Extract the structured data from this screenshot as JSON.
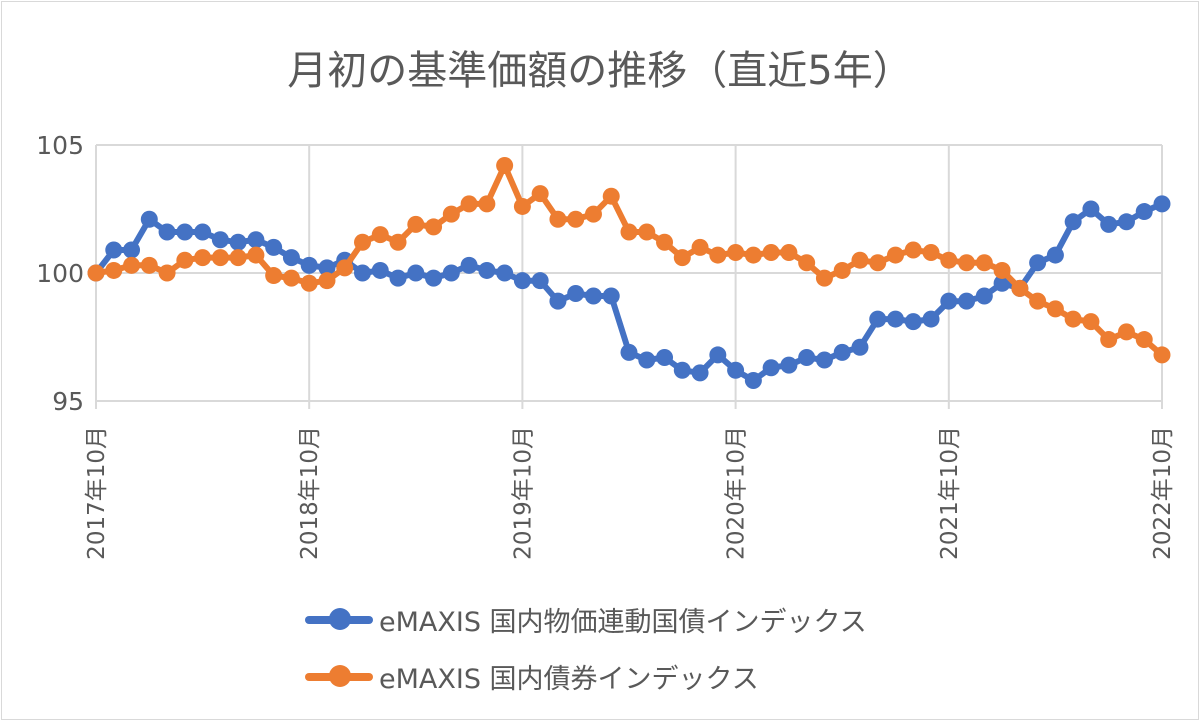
{
  "chart_data": {
    "type": "line",
    "title": "月初の基準価額の推移（直近5年）",
    "xlabel": "",
    "ylabel": "",
    "ylim": [
      95,
      105
    ],
    "yticks": [
      "95",
      "100",
      "105"
    ],
    "xticks": [
      "2017年10月",
      "2018年10月",
      "2019年10月",
      "2020年10月",
      "2021年10月",
      "2022年10月"
    ],
    "grid": true,
    "legend_position": "bottom",
    "x": [
      "2017-10",
      "2017-11",
      "2017-12",
      "2018-01",
      "2018-02",
      "2018-03",
      "2018-04",
      "2018-05",
      "2018-06",
      "2018-07",
      "2018-08",
      "2018-09",
      "2018-10",
      "2018-11",
      "2018-12",
      "2019-01",
      "2019-02",
      "2019-03",
      "2019-04",
      "2019-05",
      "2019-06",
      "2019-07",
      "2019-08",
      "2019-09",
      "2019-10",
      "2019-11",
      "2019-12",
      "2020-01",
      "2020-02",
      "2020-03",
      "2020-04",
      "2020-05",
      "2020-06",
      "2020-07",
      "2020-08",
      "2020-09",
      "2020-10",
      "2020-11",
      "2020-12",
      "2021-01",
      "2021-02",
      "2021-03",
      "2021-04",
      "2021-05",
      "2021-06",
      "2021-07",
      "2021-08",
      "2021-09",
      "2021-10",
      "2021-11",
      "2021-12",
      "2022-01",
      "2022-02",
      "2022-03",
      "2022-04",
      "2022-05",
      "2022-06",
      "2022-07",
      "2022-08",
      "2022-09",
      "2022-10"
    ],
    "series": [
      {
        "name": "eMAXIS 国内物価連動国債インデックス",
        "color": "#4472C4",
        "values": [
          100.0,
          100.9,
          100.9,
          102.1,
          101.6,
          101.6,
          101.6,
          101.3,
          101.2,
          101.3,
          101.0,
          100.6,
          100.3,
          100.2,
          100.5,
          100.0,
          100.1,
          99.8,
          100.0,
          99.8,
          100.0,
          100.3,
          100.1,
          100.0,
          99.7,
          99.7,
          98.9,
          99.2,
          99.1,
          99.1,
          96.9,
          96.6,
          96.7,
          96.2,
          96.1,
          96.8,
          96.2,
          95.8,
          96.3,
          96.4,
          96.7,
          96.6,
          96.9,
          97.1,
          98.2,
          98.2,
          98.1,
          98.2,
          98.9,
          98.9,
          99.1,
          99.6,
          99.4,
          100.4,
          100.7,
          102.0,
          102.5,
          101.9,
          102.0,
          102.4,
          102.7
        ]
      },
      {
        "name": "eMAXIS 国内債券インデックス",
        "color": "#ED7D31",
        "values": [
          100.0,
          100.1,
          100.3,
          100.3,
          100.0,
          100.5,
          100.6,
          100.6,
          100.6,
          100.7,
          99.9,
          99.8,
          99.6,
          99.7,
          100.2,
          101.2,
          101.5,
          101.2,
          101.9,
          101.8,
          102.3,
          102.7,
          102.7,
          104.2,
          102.6,
          103.1,
          102.1,
          102.1,
          102.3,
          103.0,
          101.6,
          101.6,
          101.2,
          100.6,
          101.0,
          100.7,
          100.8,
          100.7,
          100.8,
          100.8,
          100.4,
          99.8,
          100.1,
          100.5,
          100.4,
          100.7,
          100.9,
          100.8,
          100.5,
          100.4,
          100.4,
          100.1,
          99.4,
          98.9,
          98.6,
          98.2,
          98.1,
          97.4,
          97.7,
          97.4,
          96.8
        ]
      }
    ]
  }
}
